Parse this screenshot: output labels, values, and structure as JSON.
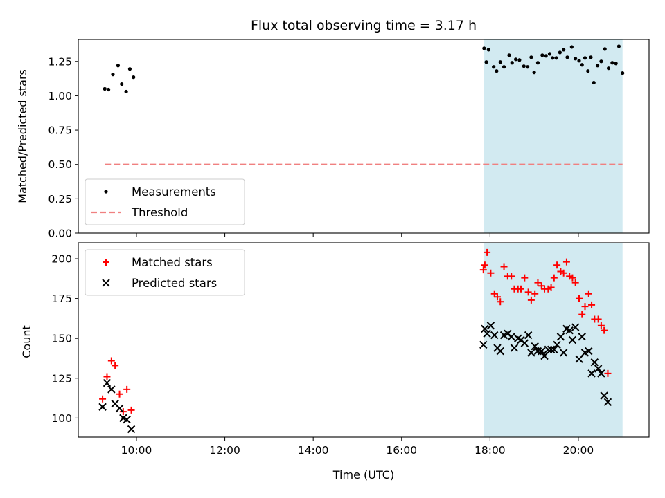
{
  "chart_data": [
    {
      "type": "scatter",
      "title": "Flux total observing time = 3.17 h",
      "ylabel": "Matched/Predicted stars",
      "xlim": [
        "08:41",
        "21:36"
      ],
      "ylim": [
        0,
        1.41
      ],
      "yticks": [
        "0.00",
        "0.25",
        "0.50",
        "0.75",
        "1.00",
        "1.25"
      ],
      "shaded_interval": [
        "17:52",
        "21:00"
      ],
      "shade_color": "#add8e6",
      "legend_position": "lower-left",
      "series": [
        {
          "name": "Measurements",
          "marker": "dot",
          "color": "#000000",
          "points": [
            [
              "09:17",
              1.05
            ],
            [
              "09:22",
              1.045
            ],
            [
              "09:28",
              1.155
            ],
            [
              "09:35",
              1.22
            ],
            [
              "09:40",
              1.085
            ],
            [
              "09:46",
              1.03
            ],
            [
              "09:51",
              1.195
            ],
            [
              "09:56",
              1.135
            ],
            [
              "17:52",
              1.345
            ],
            [
              "17:55",
              1.245
            ],
            [
              "17:58",
              1.335
            ],
            [
              "18:05",
              1.21
            ],
            [
              "18:09",
              1.18
            ],
            [
              "18:14",
              1.245
            ],
            [
              "18:19",
              1.21
            ],
            [
              "18:26",
              1.295
            ],
            [
              "18:30",
              1.24
            ],
            [
              "18:35",
              1.265
            ],
            [
              "18:40",
              1.26
            ],
            [
              "18:46",
              1.215
            ],
            [
              "18:51",
              1.21
            ],
            [
              "18:56",
              1.28
            ],
            [
              "19:00",
              1.17
            ],
            [
              "19:05",
              1.24
            ],
            [
              "19:11",
              1.295
            ],
            [
              "19:16",
              1.29
            ],
            [
              "19:21",
              1.305
            ],
            [
              "19:25",
              1.275
            ],
            [
              "19:30",
              1.275
            ],
            [
              "19:35",
              1.315
            ],
            [
              "19:40",
              1.335
            ],
            [
              "19:45",
              1.28
            ],
            [
              "19:51",
              1.355
            ],
            [
              "19:56",
              1.27
            ],
            [
              "20:01",
              1.255
            ],
            [
              "20:05",
              1.225
            ],
            [
              "20:09",
              1.275
            ],
            [
              "20:13",
              1.18
            ],
            [
              "20:17",
              1.28
            ],
            [
              "20:21",
              1.095
            ],
            [
              "20:26",
              1.22
            ],
            [
              "20:31",
              1.25
            ],
            [
              "20:36",
              1.34
            ],
            [
              "20:41",
              1.2
            ],
            [
              "20:46",
              1.24
            ],
            [
              "20:51",
              1.235
            ],
            [
              "20:55",
              1.36
            ],
            [
              "21:00",
              1.165
            ]
          ]
        },
        {
          "name": "Threshold",
          "marker": "dashed-line",
          "color": "#f08080",
          "points": [
            [
              "09:17",
              0.5
            ],
            [
              "21:00",
              0.5
            ]
          ]
        }
      ]
    },
    {
      "type": "scatter",
      "xlabel": "Time (UTC)",
      "ylabel": "Count",
      "xlim": [
        "08:41",
        "21:36"
      ],
      "xticks": [
        "10:00",
        "12:00",
        "14:00",
        "16:00",
        "18:00",
        "20:00"
      ],
      "ylim": [
        88,
        210
      ],
      "yticks": [
        "100",
        "125",
        "150",
        "175",
        "200"
      ],
      "shaded_interval": [
        "17:52",
        "21:00"
      ],
      "shade_color": "#add8e6",
      "legend_position": "upper-left",
      "series": [
        {
          "name": "Matched stars",
          "marker": "plus",
          "color": "#ff0000",
          "points": [
            [
              "09:14",
              112
            ],
            [
              "09:20",
              126
            ],
            [
              "09:26",
              136
            ],
            [
              "09:31",
              133
            ],
            [
              "09:37",
              115
            ],
            [
              "09:42",
              104
            ],
            [
              "09:47",
              118
            ],
            [
              "09:53",
              105
            ],
            [
              "17:51",
              193
            ],
            [
              "17:53",
              196
            ],
            [
              "17:56",
              204
            ],
            [
              "18:01",
              191
            ],
            [
              "18:06",
              178
            ],
            [
              "18:10",
              176
            ],
            [
              "18:14",
              173
            ],
            [
              "18:19",
              195
            ],
            [
              "18:24",
              189
            ],
            [
              "18:29",
              189
            ],
            [
              "18:33",
              181
            ],
            [
              "18:38",
              181
            ],
            [
              "18:42",
              181
            ],
            [
              "18:47",
              188
            ],
            [
              "18:52",
              179
            ],
            [
              "18:56",
              174
            ],
            [
              "19:01",
              178
            ],
            [
              "19:05",
              185
            ],
            [
              "19:10",
              183
            ],
            [
              "19:14",
              181
            ],
            [
              "19:19",
              181
            ],
            [
              "19:23",
              182
            ],
            [
              "19:27",
              188
            ],
            [
              "19:31",
              196
            ],
            [
              "19:36",
              192
            ],
            [
              "19:40",
              191
            ],
            [
              "19:44",
              198
            ],
            [
              "19:48",
              189
            ],
            [
              "19:52",
              188
            ],
            [
              "19:56",
              185
            ],
            [
              "20:01",
              175
            ],
            [
              "20:05",
              165
            ],
            [
              "20:09",
              170
            ],
            [
              "20:14",
              178
            ],
            [
              "20:18",
              171
            ],
            [
              "20:22",
              162
            ],
            [
              "20:27",
              162
            ],
            [
              "20:31",
              158
            ],
            [
              "20:35",
              155
            ],
            [
              "20:40",
              128
            ]
          ]
        },
        {
          "name": "Predicted stars",
          "marker": "x",
          "color": "#000000",
          "points": [
            [
              "09:14",
              107
            ],
            [
              "09:20",
              122
            ],
            [
              "09:26",
              118
            ],
            [
              "09:31",
              109
            ],
            [
              "09:37",
              106
            ],
            [
              "09:42",
              100
            ],
            [
              "09:47",
              99
            ],
            [
              "09:53",
              93
            ],
            [
              "17:51",
              146
            ],
            [
              "17:53",
              156
            ],
            [
              "17:56",
              153
            ],
            [
              "18:01",
              158
            ],
            [
              "18:06",
              152
            ],
            [
              "18:10",
              144
            ],
            [
              "18:14",
              142
            ],
            [
              "18:19",
              152
            ],
            [
              "18:24",
              153
            ],
            [
              "18:29",
              151
            ],
            [
              "18:33",
              144
            ],
            [
              "18:38",
              150
            ],
            [
              "18:42",
              149
            ],
            [
              "18:47",
              147
            ],
            [
              "18:52",
              152
            ],
            [
              "18:56",
              141
            ],
            [
              "19:01",
              145
            ],
            [
              "19:05",
              142
            ],
            [
              "19:10",
              142
            ],
            [
              "19:14",
              139
            ],
            [
              "19:19",
              143
            ],
            [
              "19:23",
              143
            ],
            [
              "19:27",
              143
            ],
            [
              "19:31",
              146
            ],
            [
              "19:36",
              151
            ],
            [
              "19:40",
              141
            ],
            [
              "19:44",
              156
            ],
            [
              "19:48",
              155
            ],
            [
              "19:52",
              149
            ],
            [
              "19:56",
              157
            ],
            [
              "20:01",
              137
            ],
            [
              "20:05",
              151
            ],
            [
              "20:09",
              141
            ],
            [
              "20:14",
              142
            ],
            [
              "20:18",
              128
            ],
            [
              "20:22",
              135
            ],
            [
              "20:27",
              131
            ],
            [
              "20:31",
              128
            ],
            [
              "20:35",
              114
            ],
            [
              "20:40",
              110
            ]
          ]
        }
      ]
    }
  ]
}
